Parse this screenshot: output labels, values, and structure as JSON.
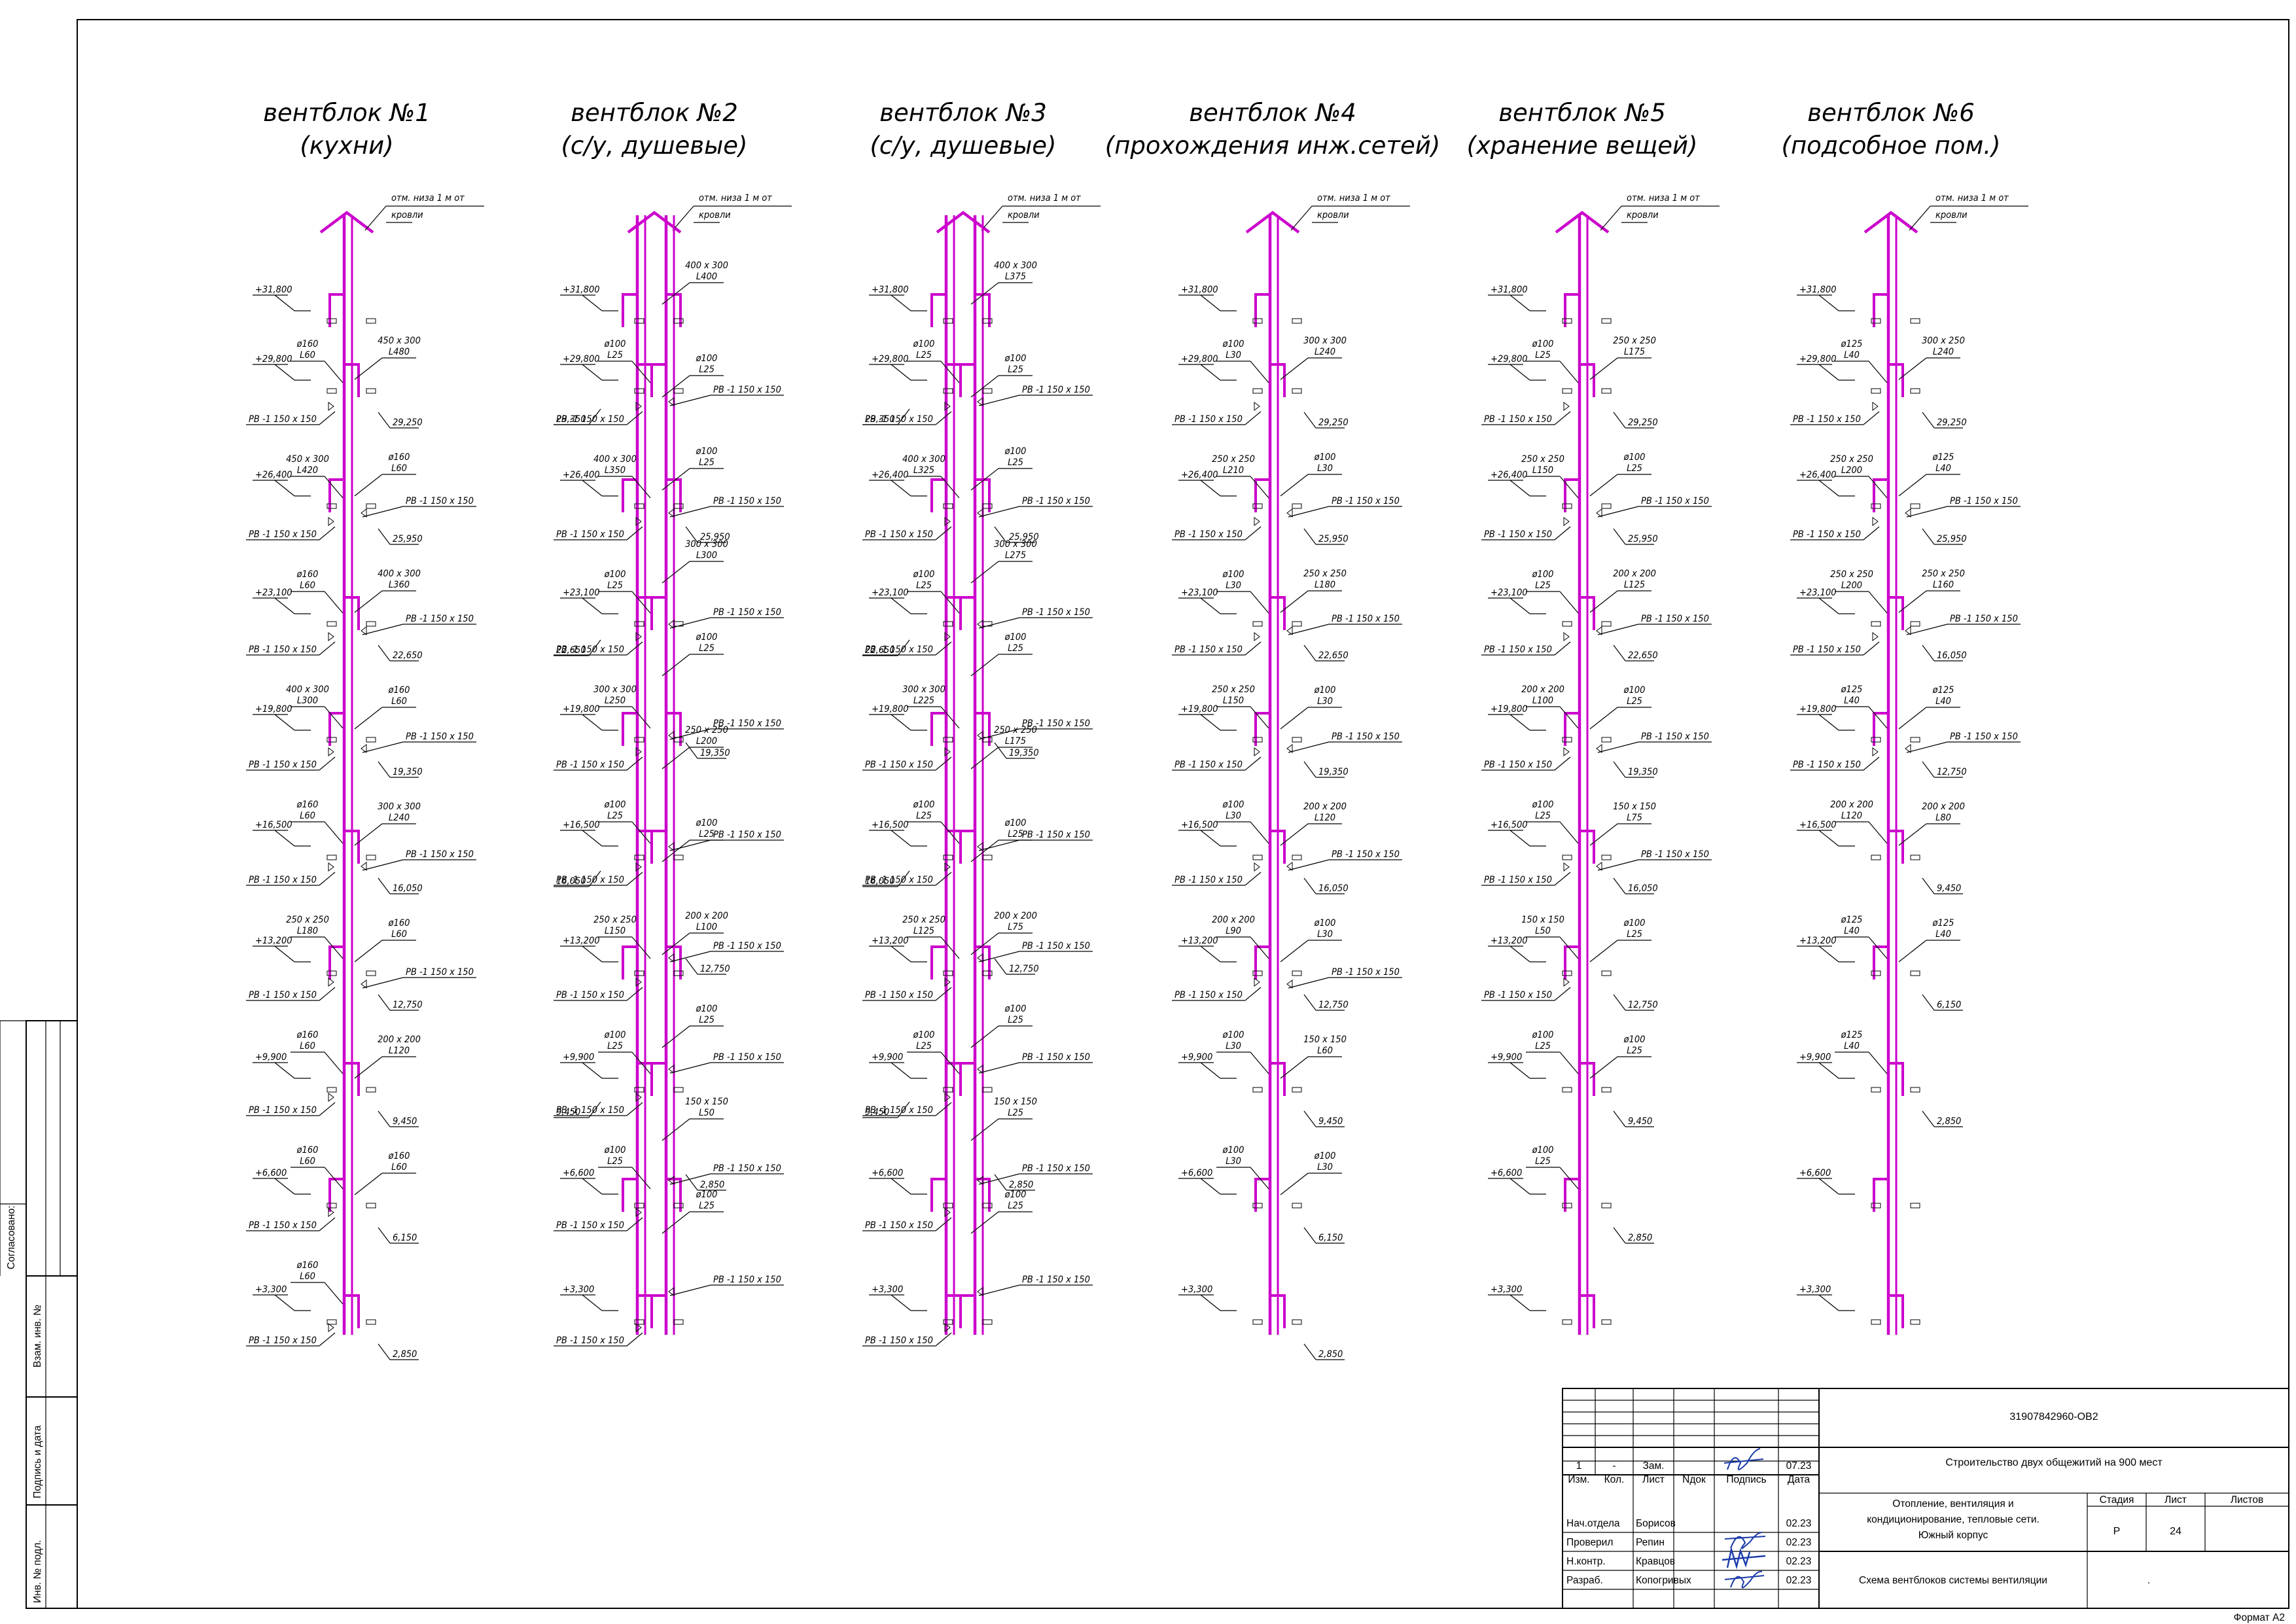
{
  "colors": {
    "duct": "#cc00cc",
    "line": "#000000",
    "background": "#ffffff"
  },
  "side_stamps": [
    {
      "key": "soglasovano",
      "text": "Согласовано:"
    },
    {
      "key": "vzam",
      "text": "Взам. инв. №"
    },
    {
      "key": "podpis",
      "text": "Подпись и дата"
    },
    {
      "key": "inv",
      "text": "Инв. № подл."
    }
  ],
  "blocks": [
    {
      "title": "вентблок №1",
      "subtitle": "(кухни)",
      "roof_note": [
        "отм. низа 1 м от",
        "кровли"
      ],
      "stacks": 1,
      "levels": [
        "+31,800",
        "+29,800",
        "+26,400",
        "+23,100",
        "+19,800",
        "+16,500",
        "+13,200",
        "+9,900",
        "+6,600",
        "+3,300"
      ],
      "left_specs": [
        [
          "ø160",
          "L60"
        ],
        [
          "450 x 300",
          "L420"
        ],
        [
          "ø160",
          "L60"
        ],
        [
          "400 x 300",
          "L300"
        ],
        [
          "ø160",
          "L60"
        ],
        [
          "250 x 250",
          "L180"
        ],
        [
          "ø160",
          "L60"
        ],
        [
          "ø160",
          "L60"
        ],
        [
          "ø160",
          "L60"
        ]
      ],
      "right_specs": [
        [
          "450 x 300",
          "L480"
        ],
        [
          "ø160",
          "L60"
        ],
        [
          "400 x 300",
          "L360"
        ],
        [
          "ø160",
          "L60"
        ],
        [
          "300 x 300",
          "L240"
        ],
        [
          "ø160",
          "L60"
        ],
        [
          "200 x 200",
          "L120"
        ],
        [
          "ø160",
          "L60"
        ]
      ],
      "left_grilles": [
        "РВ -1 150 x 150",
        "РВ -1 150 x 150",
        "РВ -1 150 x 150",
        "РВ -1 150 x 150",
        "РВ -1 150 x 150",
        "РВ -1 150 x 150",
        "РВ -1 150 x 150",
        "РВ -1 150 x 150",
        "РВ -1 150 x 150"
      ],
      "right_grilles": [
        "РВ -1 150 x 150",
        "РВ -1 150 x 150",
        "РВ -1 150 x 150",
        "РВ -1 150 x 150",
        "РВ -1 150 x 150"
      ],
      "right_marks": [
        "29,250",
        "25,950",
        "22,650",
        "19,350",
        "16,050",
        "12,750",
        "9,450",
        "6,150",
        "2,850"
      ],
      "left_marks": []
    },
    {
      "title": "вентблок №2",
      "subtitle": "(с/у, душевые)",
      "roof_note": [
        "отм. низа 1 м от",
        "кровли"
      ],
      "stacks": 2,
      "levels": [
        "+31,800",
        "+29,800",
        "+26,400",
        "+23,100",
        "+19,800",
        "+16,500",
        "+13,200",
        "+9,900",
        "+6,600",
        "+3,300"
      ],
      "left_specs": [
        [
          "ø100",
          "L25"
        ],
        [
          "400 x 300",
          "L350"
        ],
        [
          "ø100",
          "L25"
        ],
        [
          "300 x 300",
          "L250"
        ],
        [
          "ø100",
          "L25"
        ],
        [
          "250 x 250",
          "L150"
        ],
        [
          "ø100",
          "L25"
        ],
        [
          "ø100",
          "L25"
        ]
      ],
      "right_specs": [
        [
          "400 x 300",
          "L400"
        ],
        [
          "ø100",
          "L25"
        ],
        [
          "ø100",
          "L25"
        ],
        [
          "300 x 300",
          "L300"
        ],
        [
          "ø100",
          "L25"
        ],
        [
          "250 x 250",
          "L200"
        ],
        [
          "ø100",
          "L25"
        ],
        [
          "200 x 200",
          "L100"
        ],
        [
          "ø100",
          "L25"
        ],
        [
          "150 x 150",
          "L50"
        ],
        [
          "ø100",
          "L25"
        ]
      ],
      "left_grilles": [
        "РВ -1 150 x 150",
        "РВ -1 150 x 150",
        "РВ -1 150 x 150",
        "РВ -1 150 x 150",
        "РВ -1 150 x 150",
        "РВ -1 150 x 150",
        "РВ -1 150 x 150",
        "РВ -1 150 x 150",
        "РВ -1 150 x 150"
      ],
      "right_grilles": [
        "РВ -1 150 x 150",
        "РВ -1 150 x 150",
        "РВ -1 150 x 150",
        "РВ -1 150 x 150",
        "РВ -1 150 x 150",
        "РВ -1 150 x 150",
        "РВ -1 150 x 150",
        "РВ -1 150 x 150",
        "РВ -1 150 x 150"
      ],
      "right_marks": [
        "25,950",
        "19,350",
        "12,750",
        "2,850"
      ],
      "left_marks": [
        "29,350",
        "22,650",
        "16,050",
        "9,450"
      ]
    },
    {
      "title": "вентблок №3",
      "subtitle": "(с/у, душевые)",
      "roof_note": [
        "отм. низа 1 м от",
        "кровли"
      ],
      "stacks": 2,
      "levels": [
        "+31,800",
        "+29,800",
        "+26,400",
        "+23,100",
        "+19,800",
        "+16,500",
        "+13,200",
        "+9,900",
        "+6,600",
        "+3,300"
      ],
      "left_specs": [
        [
          "ø100",
          "L25"
        ],
        [
          "400 x 300",
          "L325"
        ],
        [
          "ø100",
          "L25"
        ],
        [
          "300 x 300",
          "L225"
        ],
        [
          "ø100",
          "L25"
        ],
        [
          "250 x 250",
          "L125"
        ],
        [
          "ø100",
          "L25"
        ]
      ],
      "right_specs": [
        [
          "400 x 300",
          "L375"
        ],
        [
          "ø100",
          "L25"
        ],
        [
          "ø100",
          "L25"
        ],
        [
          "300 x 300",
          "L275"
        ],
        [
          "ø100",
          "L25"
        ],
        [
          "250 x 250",
          "L175"
        ],
        [
          "ø100",
          "L25"
        ],
        [
          "200 x 200",
          "L75"
        ],
        [
          "ø100",
          "L25"
        ],
        [
          "150 x 150",
          "L25"
        ],
        [
          "ø100",
          "L25"
        ]
      ],
      "left_grilles": [
        "РВ -1 150 x 150",
        "РВ -1 150 x 150",
        "РВ -1 150 x 150",
        "РВ -1 150 x 150",
        "РВ -1 150 x 150",
        "РВ -1 150 x 150",
        "РВ -1 150 x 150",
        "РВ -1 150 x 150",
        "РВ -1 150 x 150"
      ],
      "right_grilles": [
        "РВ -1 150 x 150",
        "РВ -1 150 x 150",
        "РВ -1 150 x 150",
        "РВ -1 150 x 150",
        "РВ -1 150 x 150",
        "РВ -1 150 x 150",
        "РВ -1 150 x 150",
        "РВ -1 150 x 150",
        "РВ -1 150 x 150"
      ],
      "right_marks": [
        "25,950",
        "19,350",
        "12,750",
        "2,850"
      ],
      "left_marks": [
        "29,350",
        "22,650",
        "16,050",
        "9,450"
      ]
    },
    {
      "title": "вентблок №4",
      "subtitle": "(прохождения инж.сетей)",
      "roof_note": [
        "отм. низа 1 м от",
        "кровли"
      ],
      "stacks": 1,
      "levels": [
        "+31,800",
        "+29,800",
        "+26,400",
        "+23,100",
        "+19,800",
        "+16,500",
        "+13,200",
        "+9,900",
        "+6,600",
        "+3,300"
      ],
      "left_specs": [
        [
          "ø100",
          "L30"
        ],
        [
          "250 x 250",
          "L210"
        ],
        [
          "ø100",
          "L30"
        ],
        [
          "250 x 250",
          "L150"
        ],
        [
          "ø100",
          "L30"
        ],
        [
          "200 x 200",
          "L90"
        ],
        [
          "ø100",
          "L30"
        ],
        [
          "ø100",
          "L30"
        ]
      ],
      "right_specs": [
        [
          "300 x 300",
          "L240"
        ],
        [
          "ø100",
          "L30"
        ],
        [
          "250 x 250",
          "L180"
        ],
        [
          "ø100",
          "L30"
        ],
        [
          "200 x 200",
          "L120"
        ],
        [
          "ø100",
          "L30"
        ],
        [
          "150 x 150",
          "L60"
        ],
        [
          "ø100",
          "L30"
        ]
      ],
      "left_grilles": [
        "РВ -1 150 x 150",
        "РВ -1 150 x 150",
        "РВ -1 150 x 150",
        "РВ -1 150 x 150",
        "РВ -1 150 x 150",
        "РВ -1 150 x 150"
      ],
      "right_grilles": [
        "РВ -1 150 x 150",
        "РВ -1 150 x 150",
        "РВ -1 150 x 150",
        "РВ -1 150 x 150",
        "РВ -1 150 x 150"
      ],
      "right_marks": [
        "29,250",
        "25,950",
        "22,650",
        "19,350",
        "16,050",
        "12,750",
        "9,450",
        "6,150",
        "2,850"
      ],
      "left_marks": []
    },
    {
      "title": "вентблок №5",
      "subtitle": "(хранение вещей)",
      "roof_note": [
        "отм. низа 1 м от",
        "кровли"
      ],
      "stacks": 1,
      "levels": [
        "+31,800",
        "+29,800",
        "+26,400",
        "+23,100",
        "+19,800",
        "+16,500",
        "+13,200",
        "+9,900",
        "+6,600",
        "+3,300"
      ],
      "left_specs": [
        [
          "ø100",
          "L25"
        ],
        [
          "250 x 250",
          "L150"
        ],
        [
          "ø100",
          "L25"
        ],
        [
          "200 x 200",
          "L100"
        ],
        [
          "ø100",
          "L25"
        ],
        [
          "150 x 150",
          "L50"
        ],
        [
          "ø100",
          "L25"
        ],
        [
          "ø100",
          "L25"
        ]
      ],
      "right_specs": [
        [
          "250 x 250",
          "L175"
        ],
        [
          "ø100",
          "L25"
        ],
        [
          "200 x 200",
          "L125"
        ],
        [
          "ø100",
          "L25"
        ],
        [
          "150 x 150",
          "L75"
        ],
        [
          "ø100",
          "L25"
        ],
        [
          "ø100",
          "L25"
        ]
      ],
      "left_grilles": [
        "РВ -1 150 x 150",
        "РВ -1 150 x 150",
        "РВ -1 150 x 150",
        "РВ -1 150 x 150",
        "РВ -1 150 x 150",
        "РВ -1 150 x 150"
      ],
      "right_grilles": [
        "РВ -1 150 x 150",
        "РВ -1 150 x 150",
        "РВ -1 150 x 150",
        "РВ -1 150 x 150"
      ],
      "right_marks": [
        "29,250",
        "25,950",
        "22,650",
        "19,350",
        "16,050",
        "12,750",
        "9,450",
        "2,850"
      ],
      "left_marks": []
    },
    {
      "title": "вентблок №6",
      "subtitle": "(подсобное пом.)",
      "roof_note": [
        "отм. низа 1 м от",
        "кровли"
      ],
      "stacks": 1,
      "levels": [
        "+31,800",
        "+29,800",
        "+26,400",
        "+23,100",
        "+19,800",
        "+16,500",
        "+13,200",
        "+9,900",
        "+6,600",
        "+3,300"
      ],
      "left_specs": [
        [
          "ø125",
          "L40"
        ],
        [
          "250 x 250",
          "L200"
        ],
        [
          "250 x 250",
          "L200"
        ],
        [
          "ø125",
          "L40"
        ],
        [
          "200 x 200",
          "L120"
        ],
        [
          "ø125",
          "L40"
        ],
        [
          "ø125",
          "L40"
        ]
      ],
      "right_specs": [
        [
          "300 x 250",
          "L240"
        ],
        [
          "ø125",
          "L40"
        ],
        [
          "250 x 250",
          "L160"
        ],
        [
          "ø125",
          "L40"
        ],
        [
          "200 x 200",
          "L80"
        ],
        [
          "ø125",
          "L40"
        ]
      ],
      "left_grilles": [
        "РВ -1 150 x 150",
        "РВ -1 150 x 150",
        "РВ -1 150 x 150",
        "РВ -1 150 x 150"
      ],
      "right_grilles": [
        "РВ -1 150 x 150",
        "РВ -1 150 x 150",
        "РВ -1 150 x 150"
      ],
      "right_marks": [
        "29,250",
        "25,950",
        "16,050",
        "12,750",
        "9,450",
        "6,150",
        "2,850"
      ],
      "left_marks": []
    }
  ],
  "title_block": {
    "doc_code": "31907842960-ОВ2",
    "project": "Строительство двух общежитий на 900 мест",
    "rev_row": {
      "izm": "1",
      "kol": "-",
      "list": "Зам.",
      "ndok": "",
      "date": "07.23"
    },
    "col_heads": [
      "Изм.",
      "Кол.",
      "Лист",
      "Nдок",
      "Подпись",
      "Дата"
    ],
    "people": [
      {
        "role": "Нач.отдела",
        "name": "Борисов",
        "date": "02.23"
      },
      {
        "role": "Проверил",
        "name": "Репин",
        "date": "02.23"
      },
      {
        "role": "Н.контр.",
        "name": "Кравцов",
        "date": "02.23"
      },
      {
        "role": "Разраб.",
        "name": "Копогривых",
        "date": "02.23"
      }
    ],
    "section_title": [
      "Отопление, вентиляция и",
      "кондиционирование, тепловые сети.",
      "Южный корпус"
    ],
    "stage_head": "Стадия",
    "sheet_head": "Лист",
    "sheets_head": "Листов",
    "stage": "Р",
    "sheet": "24",
    "sheets": "",
    "drawing_title": "Схема вентблоков системы вентиляции",
    "dot": ".",
    "format": "Формат А2"
  }
}
